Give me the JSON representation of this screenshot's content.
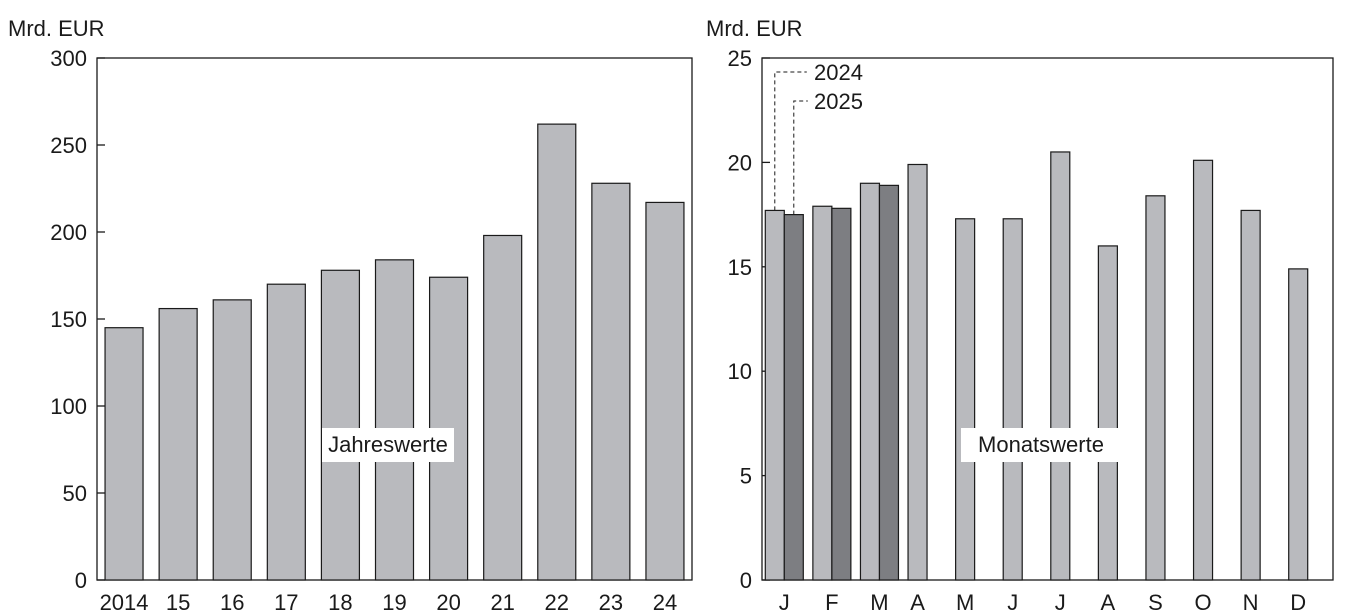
{
  "chart_data": [
    {
      "type": "bar",
      "ylabel": "Mrd. EUR",
      "ylim": [
        0,
        300
      ],
      "yticks": [
        0,
        50,
        100,
        150,
        200,
        250,
        300
      ],
      "categories": [
        "2014",
        "15",
        "16",
        "17",
        "18",
        "19",
        "20",
        "21",
        "22",
        "23",
        "24"
      ],
      "values": [
        145,
        156,
        161,
        170,
        178,
        184,
        174,
        198,
        262,
        228,
        217
      ],
      "annotation": "Jahreswerte",
      "colors": {
        "bar": "#b9babe"
      }
    },
    {
      "type": "bar",
      "ylabel": "Mrd. EUR",
      "ylim": [
        0,
        25
      ],
      "yticks": [
        0,
        5,
        10,
        15,
        20,
        25
      ],
      "categories": [
        "J",
        "F",
        "M",
        "A",
        "M",
        "J",
        "J",
        "A",
        "S",
        "O",
        "N",
        "D"
      ],
      "series": [
        {
          "name": "2024",
          "values": [
            17.7,
            17.9,
            19.0,
            19.9,
            17.3,
            17.3,
            20.5,
            16.0,
            18.4,
            20.1,
            17.7,
            14.9
          ],
          "color": "#b9babe"
        },
        {
          "name": "2025",
          "values": [
            17.5,
            17.8,
            18.9,
            null,
            null,
            null,
            null,
            null,
            null,
            null,
            null,
            null
          ],
          "color": "#7d7e82"
        }
      ],
      "annotation": "Monatswerte",
      "legend": "top-left"
    }
  ]
}
